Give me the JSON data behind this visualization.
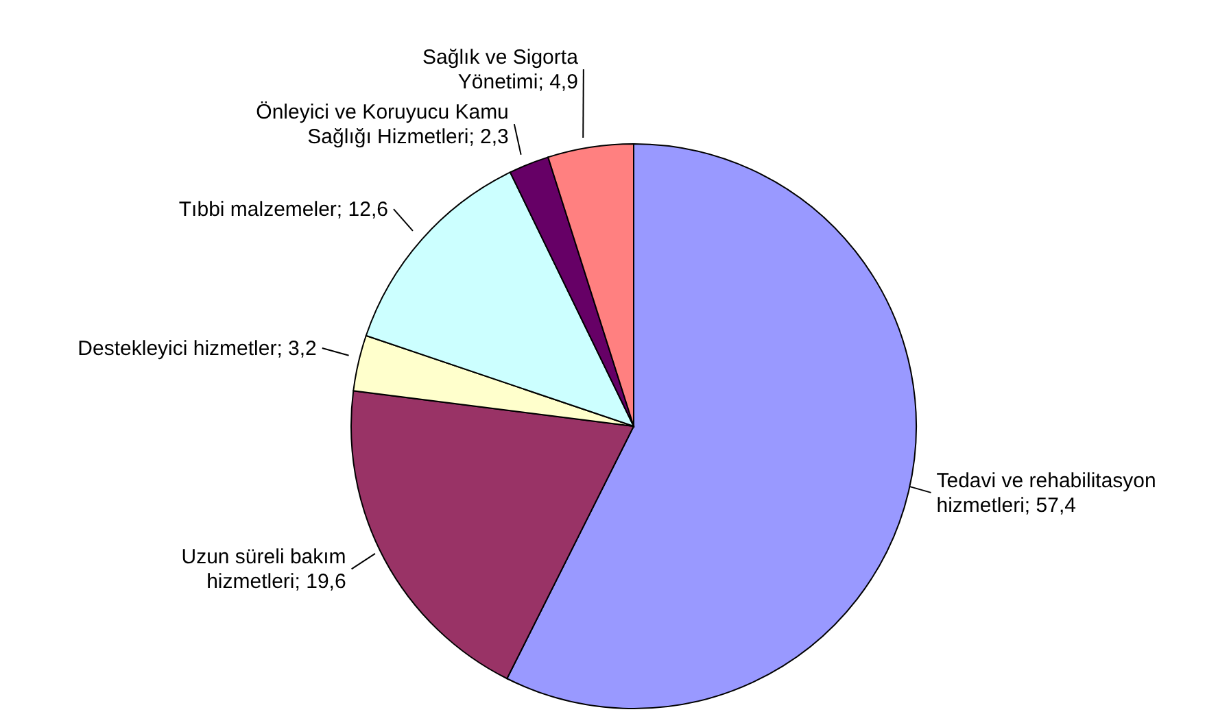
{
  "chart_data": {
    "type": "pie",
    "categories": [
      "Tedavi ve rehabilitasyon hizmetleri",
      "Uzun süreli bakım hizmetleri",
      "Destekleyici hizmetler",
      "Tıbbi malzemeler",
      "Önleyici ve Koruyucu Kamu Sağlığı Hizmetleri",
      "Sağlık ve Sigorta Yönetimi"
    ],
    "values": [
      57.4,
      19.6,
      3.2,
      12.6,
      2.3,
      4.9
    ],
    "value_labels": [
      "57,4",
      "19,6",
      "3,2",
      "12,6",
      "2,3",
      "4,9"
    ],
    "colors": [
      "#9999ff",
      "#993366",
      "#ffffcc",
      "#ccffff",
      "#660066",
      "#ff8080"
    ],
    "legend": false
  }
}
